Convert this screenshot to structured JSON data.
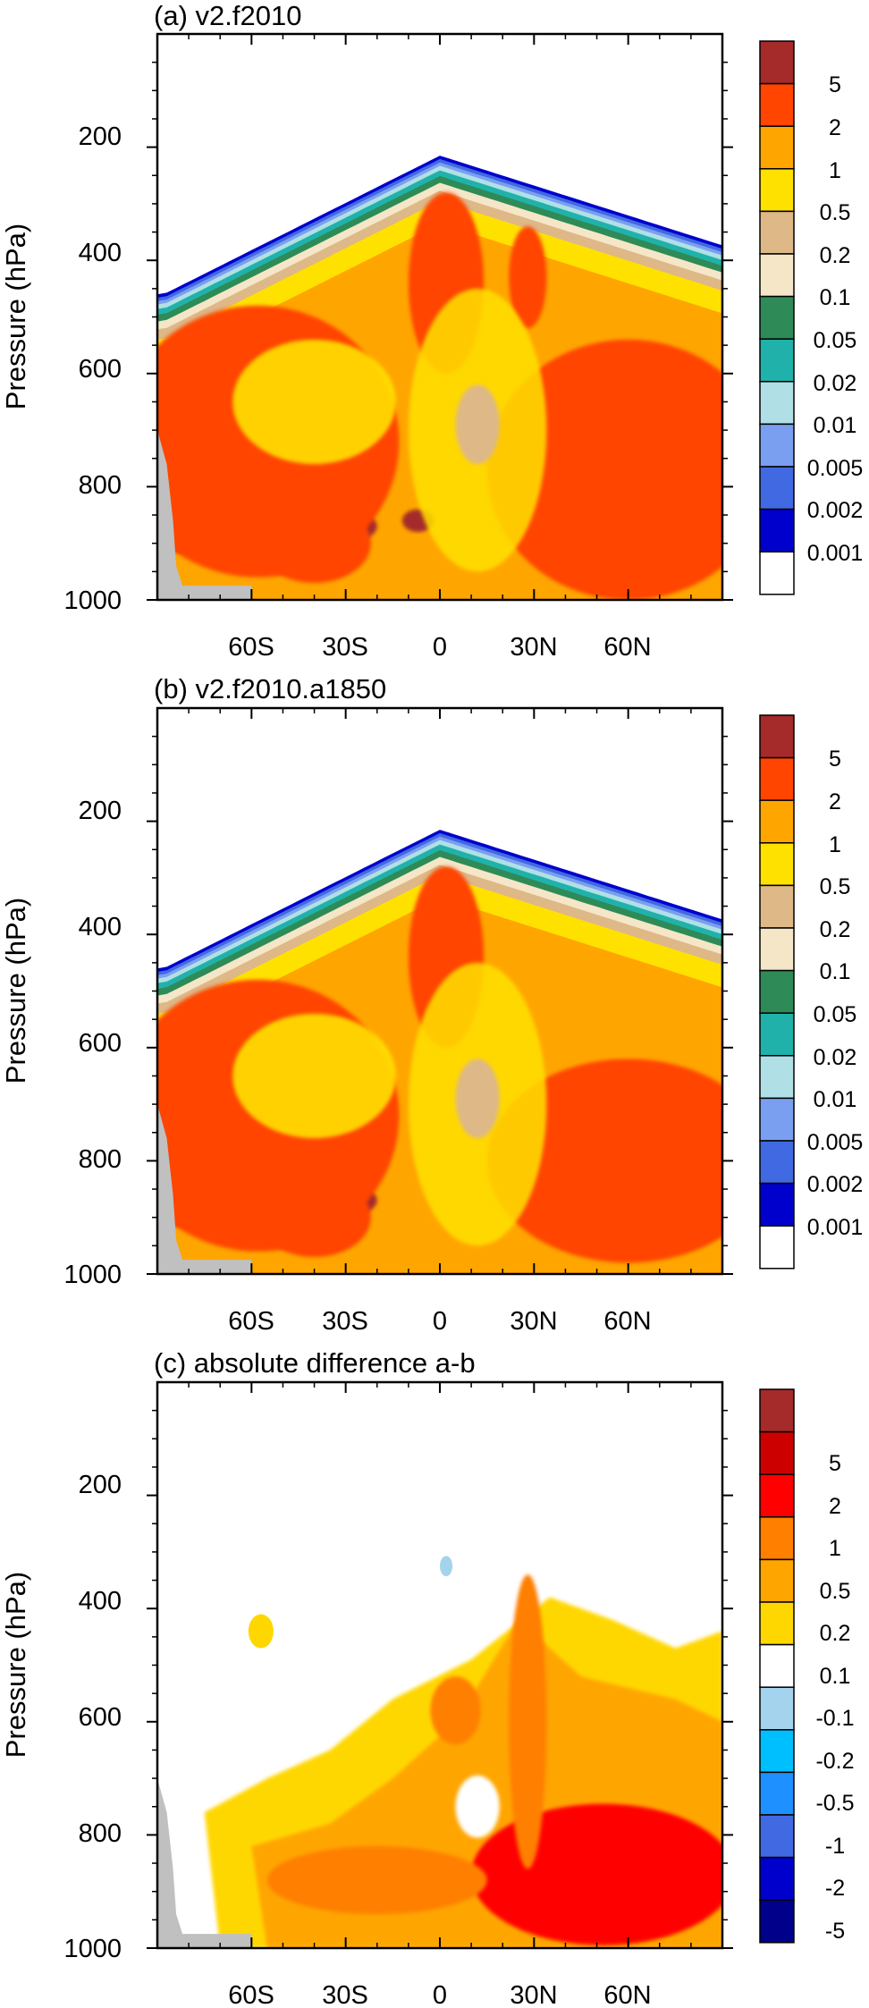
{
  "chart_data": [
    {
      "type": "heatmap",
      "title": "(a) v2.f2010",
      "ylabel": "Pressure (hPa)",
      "xlabel": "",
      "y_ticks": [
        "200",
        "400",
        "600",
        "800",
        "1000"
      ],
      "x_ticks": [
        "60S",
        "30S",
        "0",
        "30N",
        "60N"
      ],
      "ylim": [
        1000,
        0
      ],
      "xlim": [
        -90,
        90
      ],
      "colorbar": {
        "labels": [
          "5",
          "2",
          "1",
          "0.5",
          "0.2",
          "0.1",
          "0.05",
          "0.02",
          "0.01",
          "0.005",
          "0.002",
          "0.001"
        ],
        "colors": [
          "#a52a2a",
          "#ff4500",
          "#ffa500",
          "#ffe100",
          "#deb887",
          "#f5e6c8",
          "#2e8b57",
          "#20b2aa",
          "#b0e0e6",
          "#7b9ff0",
          "#4169e1",
          "#0000cd",
          "#ffffff"
        ]
      },
      "fields": [
        {
          "level": 0,
          "lat": -60,
          "p": 870,
          "size": [
            40,
            55
          ]
        },
        {
          "level": 0,
          "lat": -7,
          "p": 860,
          "size": [
            5,
            20
          ]
        },
        {
          "level": 0,
          "lat": 2,
          "p": 545,
          "size": [
            4,
            25
          ]
        },
        {
          "level": 0,
          "lat": 60,
          "p": 880,
          "size": [
            35,
            70
          ]
        },
        {
          "level": 1,
          "lat": -58,
          "p": 720,
          "size": [
            45,
            240
          ]
        },
        {
          "level": 1,
          "lat": 2,
          "p": 440,
          "size": [
            12,
            160
          ]
        },
        {
          "level": 1,
          "lat": 28,
          "p": 430,
          "size": [
            6,
            90
          ]
        },
        {
          "level": 1,
          "lat": 60,
          "p": 770,
          "size": [
            45,
            230
          ]
        }
      ]
    },
    {
      "type": "heatmap",
      "title": "(b) v2.f2010.a1850",
      "ylabel": "Pressure (hPa)",
      "xlabel": "",
      "y_ticks": [
        "200",
        "400",
        "600",
        "800",
        "1000"
      ],
      "x_ticks": [
        "60S",
        "30S",
        "0",
        "30N",
        "60N"
      ],
      "ylim": [
        1000,
        0
      ],
      "xlim": [
        -90,
        90
      ],
      "colorbar": {
        "labels": [
          "5",
          "2",
          "1",
          "0.5",
          "0.2",
          "0.1",
          "0.05",
          "0.02",
          "0.01",
          "0.005",
          "0.002",
          "0.001"
        ],
        "colors": [
          "#a52a2a",
          "#ff4500",
          "#ffa500",
          "#ffe100",
          "#deb887",
          "#f5e6c8",
          "#2e8b57",
          "#20b2aa",
          "#b0e0e6",
          "#7b9ff0",
          "#4169e1",
          "#0000cd",
          "#ffffff"
        ]
      },
      "fields": [
        {
          "level": 0,
          "lat": -60,
          "p": 870,
          "size": [
            40,
            55
          ]
        },
        {
          "level": 0,
          "lat": 65,
          "p": 900,
          "size": [
            22,
            40
          ]
        },
        {
          "level": 1,
          "lat": -58,
          "p": 720,
          "size": [
            45,
            240
          ]
        },
        {
          "level": 1,
          "lat": 2,
          "p": 440,
          "size": [
            12,
            160
          ]
        },
        {
          "level": 1,
          "lat": 60,
          "p": 800,
          "size": [
            45,
            180
          ]
        }
      ]
    },
    {
      "type": "heatmap",
      "title": "(c) absolute difference a-b",
      "ylabel": "Pressure (hPa)",
      "xlabel": "",
      "y_ticks": [
        "200",
        "400",
        "600",
        "800",
        "1000"
      ],
      "x_ticks": [
        "60S",
        "30S",
        "0",
        "30N",
        "60N"
      ],
      "ylim": [
        1000,
        0
      ],
      "xlim": [
        -90,
        90
      ],
      "colorbar": {
        "labels": [
          "5",
          "2",
          "1",
          "0.5",
          "0.2",
          "0.1",
          "-0.1",
          "-0.2",
          "-0.5",
          "-1",
          "-2",
          "-5"
        ],
        "colors": [
          "#a52a2a",
          "#cd0000",
          "#ff0000",
          "#ff7f00",
          "#ffa500",
          "#ffd700",
          "#ffffff",
          "#a4d3ee",
          "#00bfff",
          "#1e90ff",
          "#4169e1",
          "#0000cd",
          "#00008b"
        ]
      },
      "fields": [
        {
          "level": 2,
          "lat": 52,
          "p": 870,
          "size": [
            42,
            125
          ]
        },
        {
          "level": 3,
          "lat": 28,
          "p": 600,
          "size": [
            6,
            260
          ]
        },
        {
          "level": 3,
          "lat": 5,
          "p": 580,
          "size": [
            8,
            60
          ]
        },
        {
          "level": 3,
          "lat": -20,
          "p": 880,
          "size": [
            35,
            60
          ]
        }
      ]
    }
  ]
}
